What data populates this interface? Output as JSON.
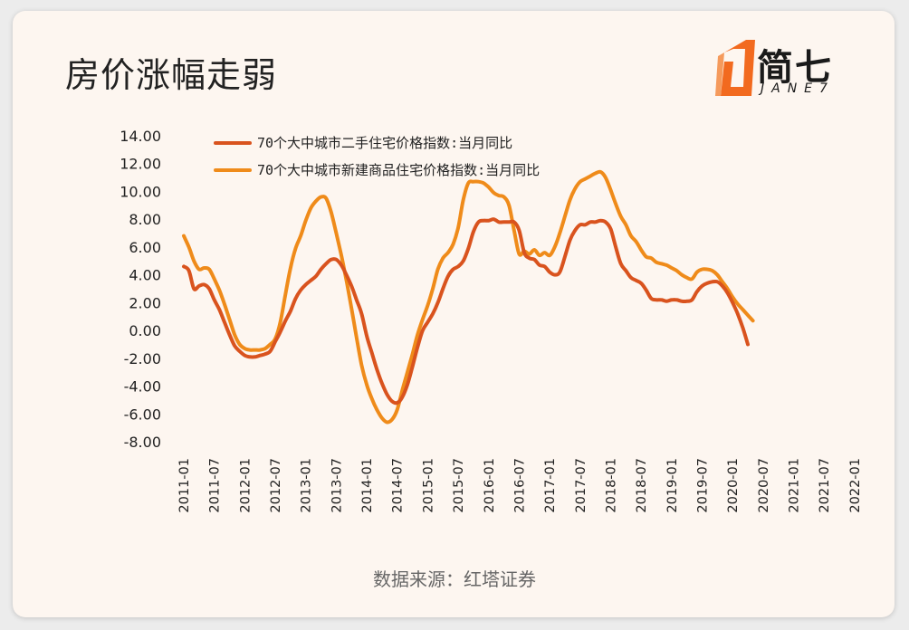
{
  "title": "房价涨幅走弱",
  "logo": {
    "text_cn": "简七",
    "text_en": "JANE7",
    "icon": "janeseven-logo-icon",
    "color": "#f26a1f"
  },
  "source": "数据来源：红塔证券",
  "colors": {
    "series1": "#d9531e",
    "series2": "#ef8b1a",
    "background": "#fdf6f0"
  },
  "chart_data": {
    "type": "line",
    "ylim": [
      -8,
      14
    ],
    "y_ticks": [
      "14.00",
      "12.00",
      "10.00",
      "8.00",
      "6.00",
      "4.00",
      "2.00",
      "0.00",
      "-2.00",
      "-4.00",
      "-6.00",
      "-8.00"
    ],
    "x_ticks": [
      "2011-01",
      "2011-07",
      "2012-01",
      "2012-07",
      "2013-01",
      "2013-07",
      "2014-01",
      "2014-07",
      "2015-01",
      "2015-07",
      "2016-01",
      "2016-07",
      "2017-01",
      "2017-07",
      "2018-01",
      "2018-07",
      "2019-01",
      "2019-07",
      "2020-01",
      "2020-07",
      "2021-01",
      "2021-07",
      "2022-01"
    ],
    "x_start": "2011-01",
    "grid": false,
    "legend_position": "top",
    "series": [
      {
        "name": "70个大中城市二手住宅价格指数:当月同比",
        "color": "#d9531e",
        "values": [
          4.6,
          4.3,
          3.0,
          3.2,
          3.3,
          3.0,
          2.2,
          1.5,
          0.6,
          -0.3,
          -1.1,
          -1.5,
          -1.8,
          -1.9,
          -1.9,
          -1.8,
          -1.7,
          -1.5,
          -0.8,
          -0.1,
          0.7,
          1.4,
          2.3,
          2.9,
          3.3,
          3.6,
          3.9,
          4.4,
          4.8,
          5.1,
          5.1,
          4.7,
          4.0,
          3.2,
          2.2,
          1.2,
          -0.4,
          -1.6,
          -2.8,
          -3.8,
          -4.6,
          -5.1,
          -5.2,
          -4.8,
          -3.9,
          -2.6,
          -1.2,
          0.0,
          0.6,
          1.2,
          2.0,
          3.0,
          3.9,
          4.4,
          4.6,
          5.0,
          5.9,
          7.1,
          7.8,
          7.9,
          7.9,
          8.0,
          7.8,
          7.8,
          7.8,
          7.8,
          7.2,
          5.6,
          5.2,
          5.1,
          4.7,
          4.6,
          4.2,
          4.0,
          4.2,
          5.3,
          6.5,
          7.2,
          7.6,
          7.6,
          7.8,
          7.8,
          7.9,
          7.8,
          7.3,
          6.0,
          4.8,
          4.3,
          3.8,
          3.6,
          3.4,
          2.9,
          2.3,
          2.2,
          2.2,
          2.1,
          2.2,
          2.2,
          2.1,
          2.1,
          2.2,
          2.8,
          3.2,
          3.4,
          3.5,
          3.5,
          3.2,
          2.7,
          2.0,
          1.2,
          0.2,
          -1.0
        ]
      },
      {
        "name": "70个大中城市新建商品住宅价格指数:当月同比",
        "color": "#ef8b1a",
        "values": [
          6.8,
          6.0,
          5.0,
          4.4,
          4.5,
          4.4,
          3.7,
          2.9,
          1.9,
          0.8,
          -0.3,
          -1.0,
          -1.3,
          -1.4,
          -1.4,
          -1.4,
          -1.3,
          -1.0,
          -0.6,
          0.6,
          2.6,
          4.5,
          5.9,
          6.8,
          7.9,
          8.8,
          9.3,
          9.6,
          9.5,
          8.5,
          7.0,
          5.4,
          3.6,
          1.6,
          -0.5,
          -2.5,
          -3.9,
          -4.9,
          -5.7,
          -6.3,
          -6.6,
          -6.4,
          -5.7,
          -4.3,
          -3.0,
          -1.7,
          -0.3,
          0.8,
          1.8,
          3.0,
          4.4,
          5.2,
          5.6,
          6.2,
          7.4,
          9.4,
          10.6,
          10.7,
          10.7,
          10.6,
          10.3,
          9.9,
          9.7,
          9.6,
          9.0,
          7.2,
          5.5,
          5.7,
          5.5,
          5.8,
          5.4,
          5.6,
          5.4,
          6.0,
          7.0,
          8.2,
          9.4,
          10.2,
          10.7,
          10.9,
          11.1,
          11.3,
          11.4,
          11.0,
          10.1,
          9.1,
          8.2,
          7.6,
          6.8,
          6.4,
          5.8,
          5.3,
          5.2,
          4.9,
          4.8,
          4.7,
          4.5,
          4.3,
          4.0,
          3.8,
          3.7,
          4.2,
          4.4,
          4.4,
          4.3,
          4.0,
          3.5,
          3.0,
          2.4,
          1.9,
          1.5,
          1.1,
          0.7
        ]
      }
    ]
  }
}
